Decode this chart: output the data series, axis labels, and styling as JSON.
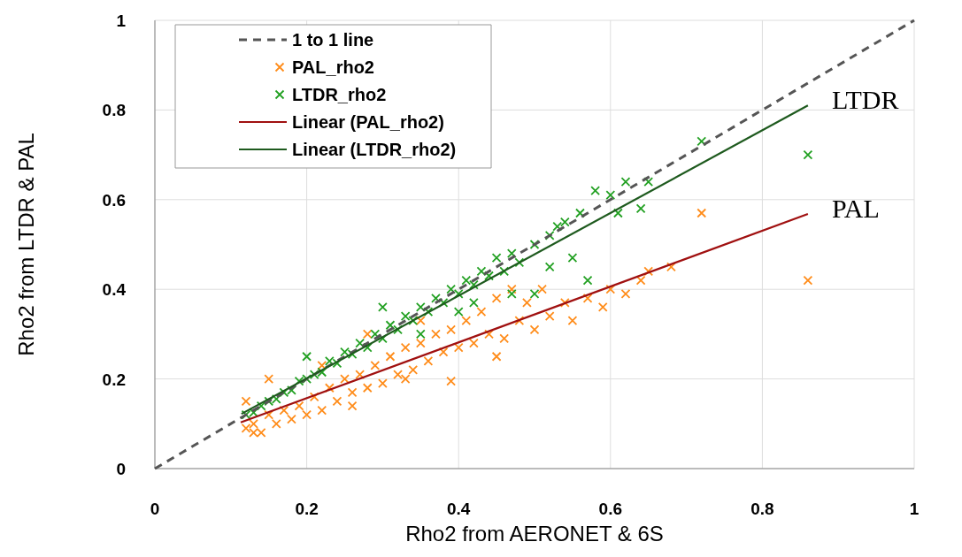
{
  "chart_data": {
    "type": "scatter",
    "xlabel": "Rho2 from AERONET & 6S",
    "ylabel": "Rho2 from LTDR & PAL",
    "xlim": [
      0,
      1
    ],
    "ylim": [
      0,
      1
    ],
    "xticks": [
      0,
      0.2,
      0.4,
      0.6,
      0.8,
      1
    ],
    "yticks": [
      0,
      0.2,
      0.4,
      0.6,
      0.8,
      1
    ],
    "grid": true,
    "legend": "top left",
    "annotations": [
      {
        "text": "LTDR",
        "x": 0.86,
        "y": 0.81
      },
      {
        "text": "PAL",
        "x": 0.86,
        "y": 0.568
      }
    ],
    "series": [
      {
        "name": "1 to 1 line",
        "type": "line",
        "color": "#555555",
        "line_style": "dashed",
        "marker": "none",
        "x": [
          0,
          1
        ],
        "values": [
          0,
          1
        ]
      },
      {
        "name": "PAL_rho2",
        "color": "#ff8c1a",
        "marker": "cross",
        "x": [
          0.12,
          0.13,
          0.14,
          0.15,
          0.16,
          0.17,
          0.18,
          0.19,
          0.2,
          0.21,
          0.22,
          0.23,
          0.24,
          0.25,
          0.26,
          0.27,
          0.28,
          0.29,
          0.3,
          0.31,
          0.32,
          0.33,
          0.34,
          0.35,
          0.36,
          0.37,
          0.38,
          0.39,
          0.4,
          0.41,
          0.42,
          0.43,
          0.44,
          0.45,
          0.46,
          0.47,
          0.48,
          0.49,
          0.5,
          0.51,
          0.52,
          0.54,
          0.55,
          0.57,
          0.59,
          0.6,
          0.62,
          0.64,
          0.65,
          0.68,
          0.72,
          0.86,
          0.39,
          0.15,
          0.12,
          0.13,
          0.28,
          0.35,
          0.22,
          0.26,
          0.33,
          0.45
        ],
        "values": [
          0.09,
          0.1,
          0.08,
          0.12,
          0.1,
          0.13,
          0.11,
          0.14,
          0.12,
          0.16,
          0.13,
          0.18,
          0.15,
          0.2,
          0.17,
          0.21,
          0.18,
          0.23,
          0.19,
          0.25,
          0.21,
          0.27,
          0.22,
          0.28,
          0.24,
          0.3,
          0.26,
          0.31,
          0.27,
          0.33,
          0.28,
          0.35,
          0.3,
          0.38,
          0.29,
          0.4,
          0.33,
          0.37,
          0.31,
          0.4,
          0.34,
          0.37,
          0.33,
          0.38,
          0.36,
          0.4,
          0.39,
          0.42,
          0.44,
          0.45,
          0.57,
          0.42,
          0.195,
          0.2,
          0.15,
          0.08,
          0.3,
          0.33,
          0.23,
          0.14,
          0.2,
          0.25
        ]
      },
      {
        "name": "LTDR_rho2",
        "color": "#22a022",
        "marker": "cross",
        "x": [
          0.12,
          0.13,
          0.14,
          0.15,
          0.16,
          0.17,
          0.18,
          0.19,
          0.2,
          0.21,
          0.22,
          0.23,
          0.24,
          0.25,
          0.26,
          0.27,
          0.28,
          0.29,
          0.3,
          0.31,
          0.32,
          0.33,
          0.34,
          0.35,
          0.36,
          0.37,
          0.38,
          0.39,
          0.4,
          0.41,
          0.42,
          0.43,
          0.44,
          0.45,
          0.46,
          0.47,
          0.48,
          0.5,
          0.52,
          0.54,
          0.56,
          0.58,
          0.6,
          0.62,
          0.2,
          0.3,
          0.35,
          0.4,
          0.42,
          0.47,
          0.5,
          0.52,
          0.55,
          0.57,
          0.53,
          0.61,
          0.65,
          0.64,
          0.72,
          0.86
        ],
        "values": [
          0.12,
          0.125,
          0.14,
          0.15,
          0.155,
          0.17,
          0.175,
          0.195,
          0.2,
          0.21,
          0.215,
          0.24,
          0.235,
          0.26,
          0.255,
          0.28,
          0.27,
          0.3,
          0.29,
          0.32,
          0.31,
          0.34,
          0.33,
          0.36,
          0.35,
          0.38,
          0.37,
          0.4,
          0.39,
          0.42,
          0.41,
          0.44,
          0.43,
          0.47,
          0.44,
          0.48,
          0.46,
          0.5,
          0.52,
          0.55,
          0.57,
          0.62,
          0.61,
          0.64,
          0.25,
          0.36,
          0.3,
          0.35,
          0.37,
          0.39,
          0.39,
          0.45,
          0.47,
          0.42,
          0.54,
          0.57,
          0.64,
          0.58,
          0.73,
          0.7
        ]
      },
      {
        "name": "Linear (PAL_rho2)",
        "type": "line",
        "color": "#a01010",
        "line_style": "solid",
        "marker": "none",
        "x": [
          0.113,
          0.86
        ],
        "values": [
          0.103,
          0.568
        ]
      },
      {
        "name": "Linear (LTDR_rho2)",
        "type": "line",
        "color": "#1e5a1e",
        "line_style": "solid",
        "marker": "none",
        "x": [
          0.114,
          0.86
        ],
        "values": [
          0.122,
          0.81
        ]
      }
    ]
  }
}
